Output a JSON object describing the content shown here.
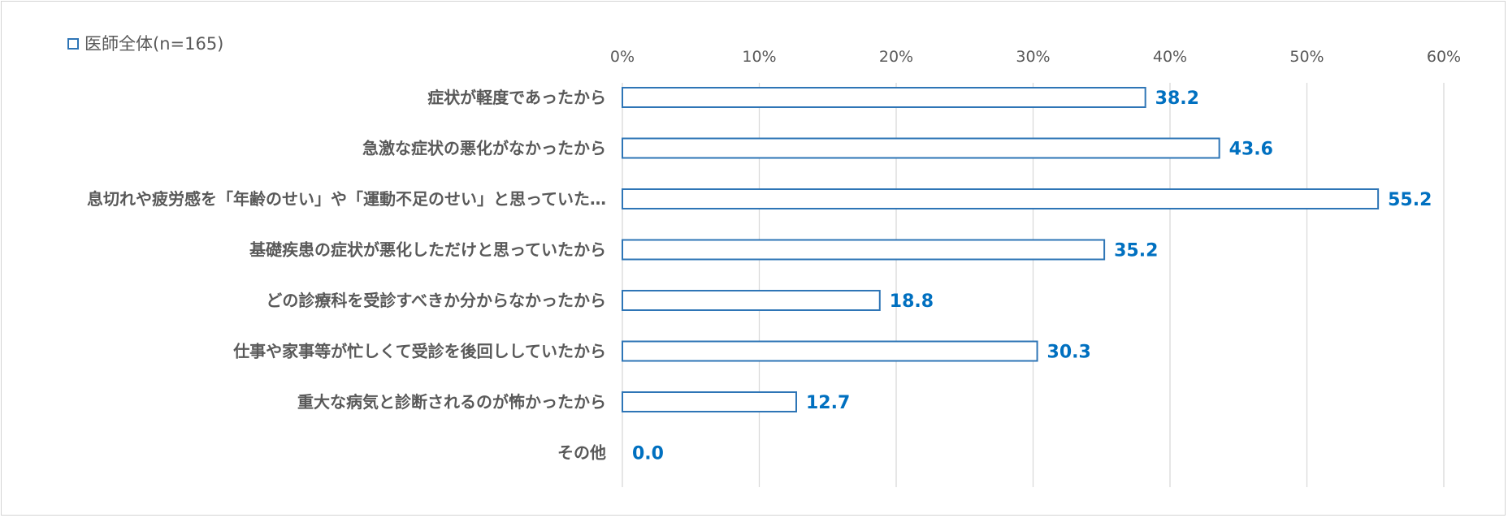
{
  "chart_data": {
    "type": "bar",
    "orientation": "horizontal",
    "legend": {
      "position": "top-left",
      "entries": [
        "医師全体(n=165)"
      ]
    },
    "categories": [
      "症状が軽度であったから",
      "急激な症状の悪化がなかったから",
      "息切れや疲労感を「年齢のせい」や「運動不足のせい」と思っていた…",
      "基礎疾患の症状が悪化しただけと思っていたから",
      "どの診療科を受診すべきか分からなかったから",
      "仕事や家事等が忙しくて受診を後回ししていたから",
      "重大な病気と診断されるのが怖かったから",
      "その他"
    ],
    "series": [
      {
        "name": "医師全体(n=165)",
        "values": [
          38.2,
          43.6,
          55.2,
          35.2,
          18.8,
          30.3,
          12.7,
          0.0
        ],
        "value_labels": [
          "38.2",
          "43.6",
          "55.2",
          "35.2",
          "18.8",
          "30.3",
          "12.7",
          "0.0"
        ]
      }
    ],
    "xlim": [
      0,
      60
    ],
    "xticks": [
      0,
      10,
      20,
      30,
      40,
      50,
      60
    ],
    "xtick_labels": [
      "0%",
      "10%",
      "20%",
      "30%",
      "40%",
      "50%",
      "60%"
    ],
    "grid": true,
    "colors": {
      "bar_edge": "#2e75b6",
      "bar_fill": "#ffffff",
      "value_label": "#0070c0",
      "grid": "#d9d9d9",
      "text": "#595959"
    }
  }
}
